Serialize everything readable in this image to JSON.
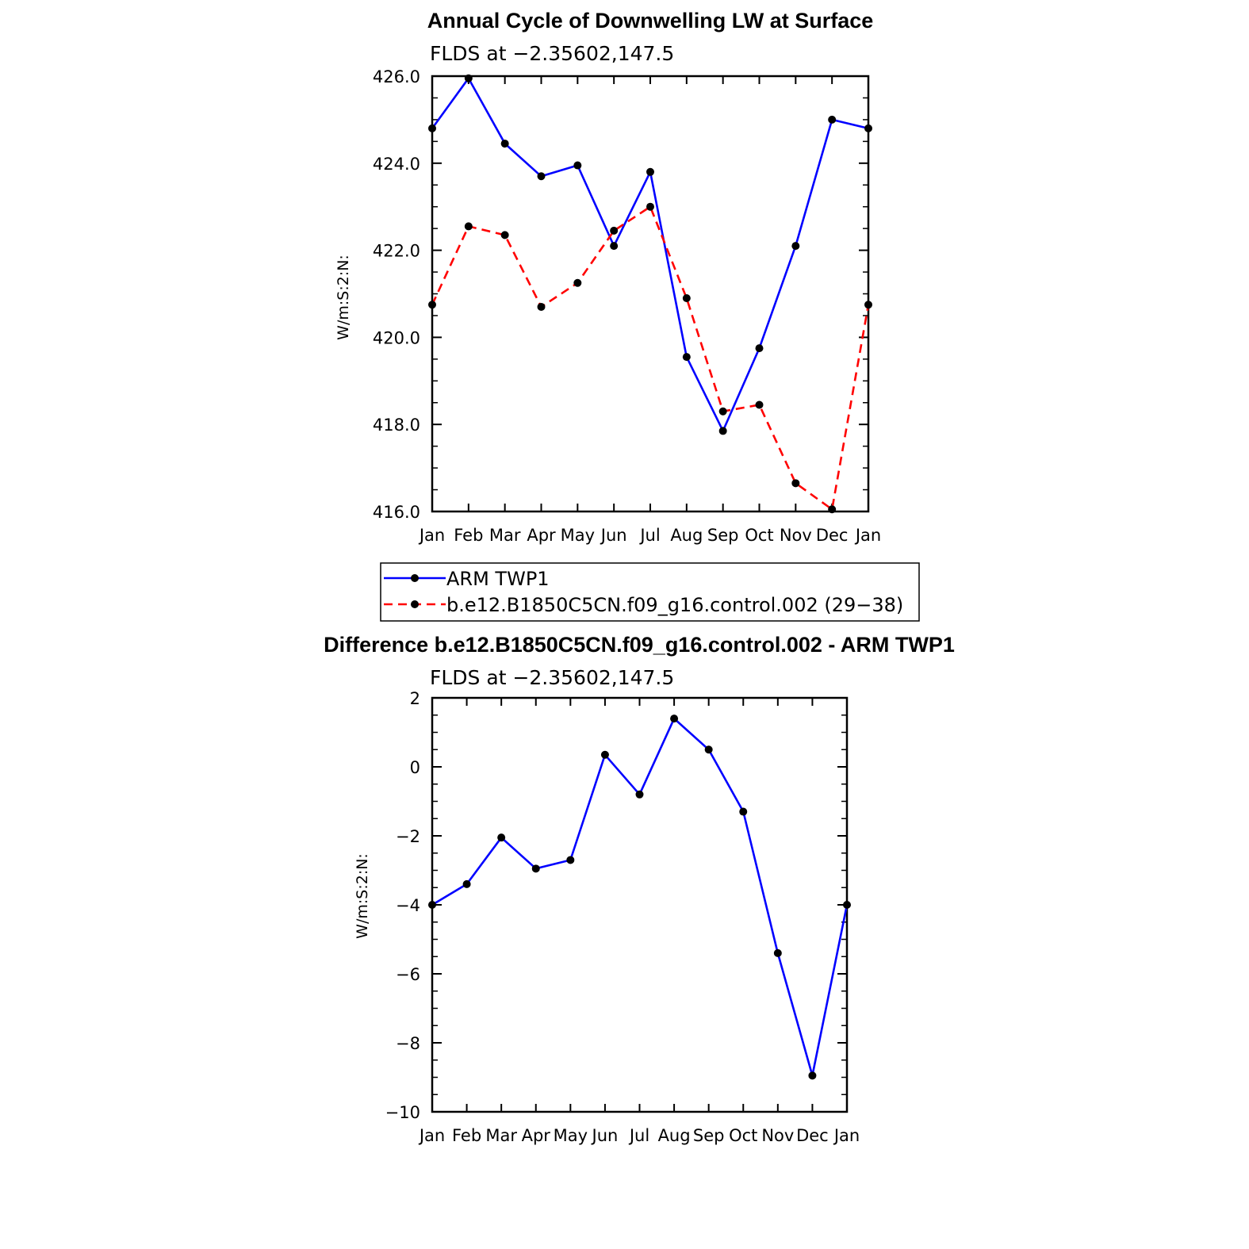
{
  "chart_data": [
    {
      "type": "line",
      "title": "Annual Cycle of Downwelling LW at Surface",
      "subtitle": "FLDS at −2.35602,147.5",
      "ylabel": "W/m:S:2:N:",
      "xlabel": "",
      "categories": [
        "Jan",
        "Feb",
        "Mar",
        "Apr",
        "May",
        "Jun",
        "Jul",
        "Aug",
        "Sep",
        "Oct",
        "Nov",
        "Dec",
        "Jan"
      ],
      "ylim": [
        416.0,
        426.0
      ],
      "yticks": [
        "416.0",
        "418.0",
        "420.0",
        "422.0",
        "424.0",
        "426.0"
      ],
      "series": [
        {
          "name": "ARM TWP1",
          "color": "#0000ff",
          "dash": "solid",
          "values": [
            424.8,
            425.95,
            424.45,
            423.7,
            423.95,
            422.1,
            423.8,
            419.55,
            417.85,
            419.75,
            422.1,
            425.0,
            424.8
          ]
        },
        {
          "name": "b.e12.B1850C5CN.f09_g16.control.002 (29−38)",
          "color": "#ff0000",
          "dash": "dashed",
          "values": [
            420.75,
            422.55,
            422.35,
            420.7,
            421.25,
            422.45,
            423.0,
            420.9,
            418.3,
            418.45,
            416.65,
            416.05,
            420.75
          ]
        }
      ],
      "legend_position": "bottom"
    },
    {
      "type": "line",
      "title": "Difference b.e12.B1850C5CN.f09_g16.control.002 - ARM TWP1",
      "subtitle": "FLDS at −2.35602,147.5",
      "ylabel": "W/m:S:2:N:",
      "xlabel": "",
      "categories": [
        "Jan",
        "Feb",
        "Mar",
        "Apr",
        "May",
        "Jun",
        "Jul",
        "Aug",
        "Sep",
        "Oct",
        "Nov",
        "Dec",
        "Jan"
      ],
      "ylim": [
        -10,
        2
      ],
      "yticks": [
        "−10",
        "−8",
        "−6",
        "−4",
        "−2",
        "0",
        "2"
      ],
      "series": [
        {
          "color": "#0000ff",
          "dash": "solid",
          "values": [
            -4.0,
            -3.4,
            -2.05,
            -2.95,
            -2.7,
            0.35,
            -0.8,
            1.4,
            0.5,
            -1.3,
            -5.4,
            -8.95,
            -4.0
          ]
        }
      ]
    }
  ]
}
